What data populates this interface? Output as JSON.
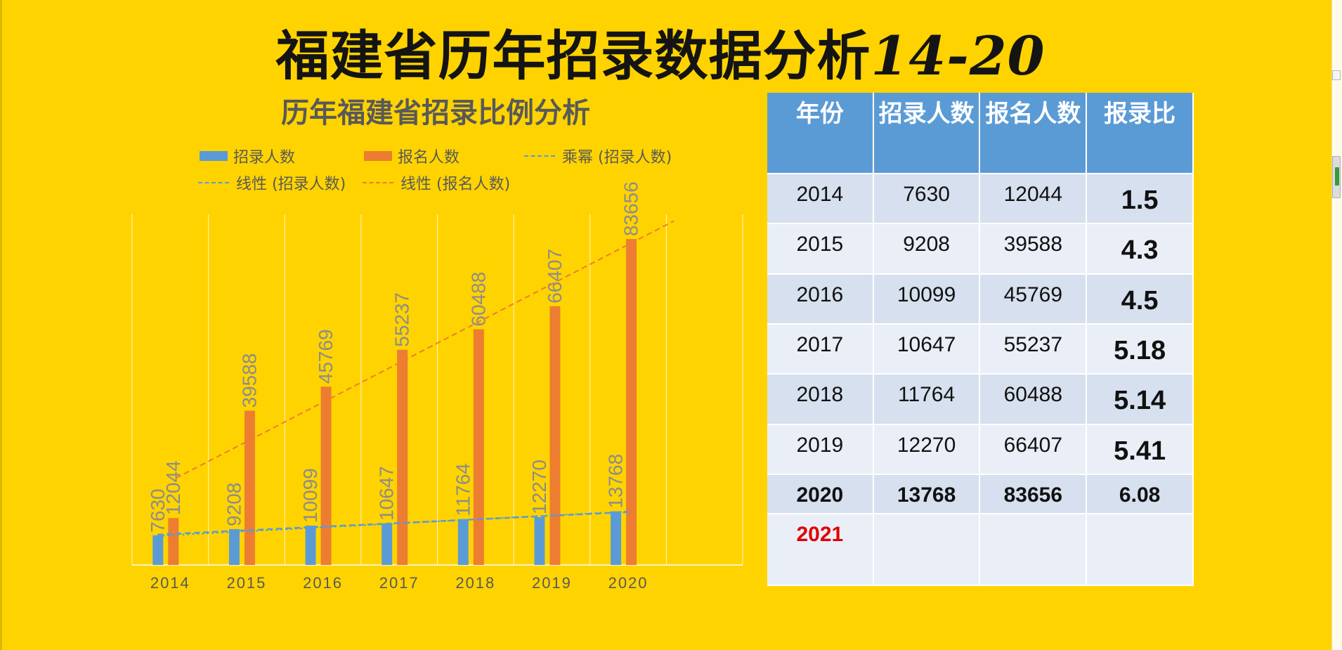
{
  "title": {
    "main": "福建省历年招录数据分析",
    "suffix": "14-20"
  },
  "colors": {
    "recruit": "#5B9BD5",
    "apply": "#ED7D31",
    "background": "#FFD300",
    "header": "#5B9BD5"
  },
  "chart_data": {
    "type": "bar",
    "title": "历年福建省招录比例分析",
    "categories": [
      "2014",
      "2015",
      "2016",
      "2017",
      "2018",
      "2019",
      "2020"
    ],
    "series": [
      {
        "name": "招录人数",
        "values": [
          7630,
          9208,
          10099,
          10647,
          11764,
          12270,
          13768
        ],
        "labels": [
          "7630",
          "9208",
          "10099",
          "10647",
          "11764",
          "12270",
          "13768"
        ]
      },
      {
        "name": "报名人数",
        "values": [
          12044,
          39588,
          45769,
          55237,
          60488,
          66407,
          83656
        ],
        "labels": [
          "12044",
          "39588",
          "45769",
          "55237",
          "60488",
          "66407",
          "83656"
        ]
      }
    ],
    "trendlines": [
      {
        "name": "乘幂 (招录人数)",
        "series": "招录人数",
        "kind": "power"
      },
      {
        "name": "线性 (招录人数)",
        "series": "招录人数",
        "kind": "linear"
      },
      {
        "name": "线性 (报名人数)",
        "series": "报名人数",
        "kind": "linear"
      }
    ],
    "ylim": [
      0,
      90000
    ],
    "grid": "vertical",
    "legend_position": "top"
  },
  "table": {
    "headers": [
      "年份",
      "招录人数",
      "报名人数",
      "报录比"
    ],
    "rows": [
      [
        "2014",
        "7630",
        "12044",
        "1.5"
      ],
      [
        "2015",
        "9208",
        "39588",
        "4.3"
      ],
      [
        "2016",
        "10099",
        "45769",
        "4.5"
      ],
      [
        "2017",
        "10647",
        "55237",
        "5.18"
      ],
      [
        "2018",
        "11764",
        "60488",
        "5.14"
      ],
      [
        "2019",
        "12270",
        "66407",
        "5.41"
      ],
      [
        "2020",
        "13768",
        "83656",
        "6.08"
      ],
      [
        "2021",
        "",
        "",
        ""
      ]
    ]
  }
}
